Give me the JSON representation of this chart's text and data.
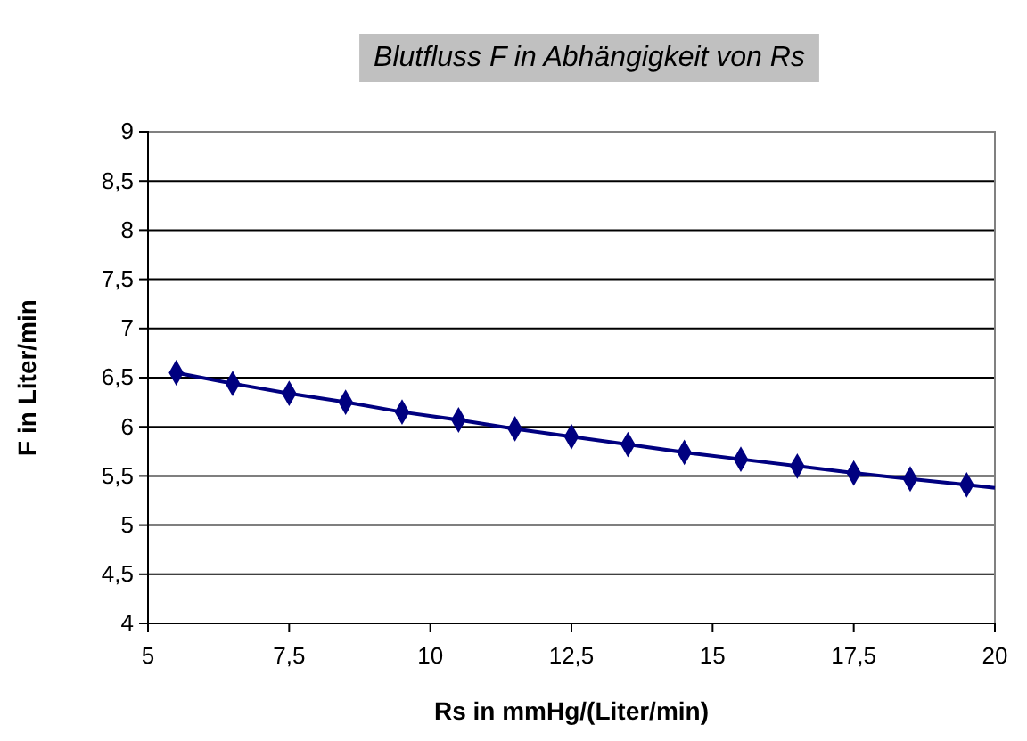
{
  "chart_data": {
    "type": "scatter",
    "title": "Blutfluss F in Abhängigkeit von Rs",
    "xlabel": "Rs in mmHg/(Liter/min)",
    "ylabel": "F in Liter/min",
    "xlim": [
      5,
      20
    ],
    "xticks": [
      5,
      {
        "value": 7.5,
        "label": "7,5"
      },
      10,
      {
        "value": 12.5,
        "label": "12,5"
      },
      15,
      {
        "value": 17.5,
        "label": "17,5"
      },
      20
    ],
    "ylim": [
      4,
      9
    ],
    "yticks": [
      4,
      {
        "value": 4.5,
        "label": "4,5"
      },
      5,
      {
        "value": 5.5,
        "label": "5,5"
      },
      6,
      {
        "value": 6.5,
        "label": "6,5"
      },
      7,
      {
        "value": 7.5,
        "label": "7,5"
      },
      8,
      {
        "value": 8.5,
        "label": "8,5"
      },
      9
    ],
    "grid": "y",
    "marker": "diamond",
    "series": [
      {
        "type": "line",
        "color": "#000080",
        "marker": "none",
        "line_style": "solid",
        "x": [
          5.5,
          6.5,
          7.5,
          8.5,
          9.5,
          10.5,
          11.5,
          12.5,
          13.5,
          14.5,
          15.5,
          16.5,
          17.5,
          18.5,
          19.5,
          20
        ],
        "values": [
          6.55,
          6.44,
          6.34,
          6.25,
          6.15,
          6.07,
          5.98,
          5.9,
          5.82,
          5.74,
          5.67,
          5.6,
          5.53,
          5.47,
          5.41,
          5.38
        ]
      },
      {
        "type": "scatter",
        "color": "#000080",
        "x": [
          5.5,
          6.5,
          7.5,
          8.5,
          9.5,
          10.5,
          11.5,
          12.5,
          13.5,
          14.5,
          15.5,
          16.5,
          17.5,
          18.5,
          19.5
        ],
        "values": [
          6.55,
          6.44,
          6.34,
          6.25,
          6.15,
          6.07,
          5.98,
          5.9,
          5.82,
          5.74,
          5.67,
          5.6,
          5.53,
          5.47,
          5.41
        ]
      }
    ]
  }
}
